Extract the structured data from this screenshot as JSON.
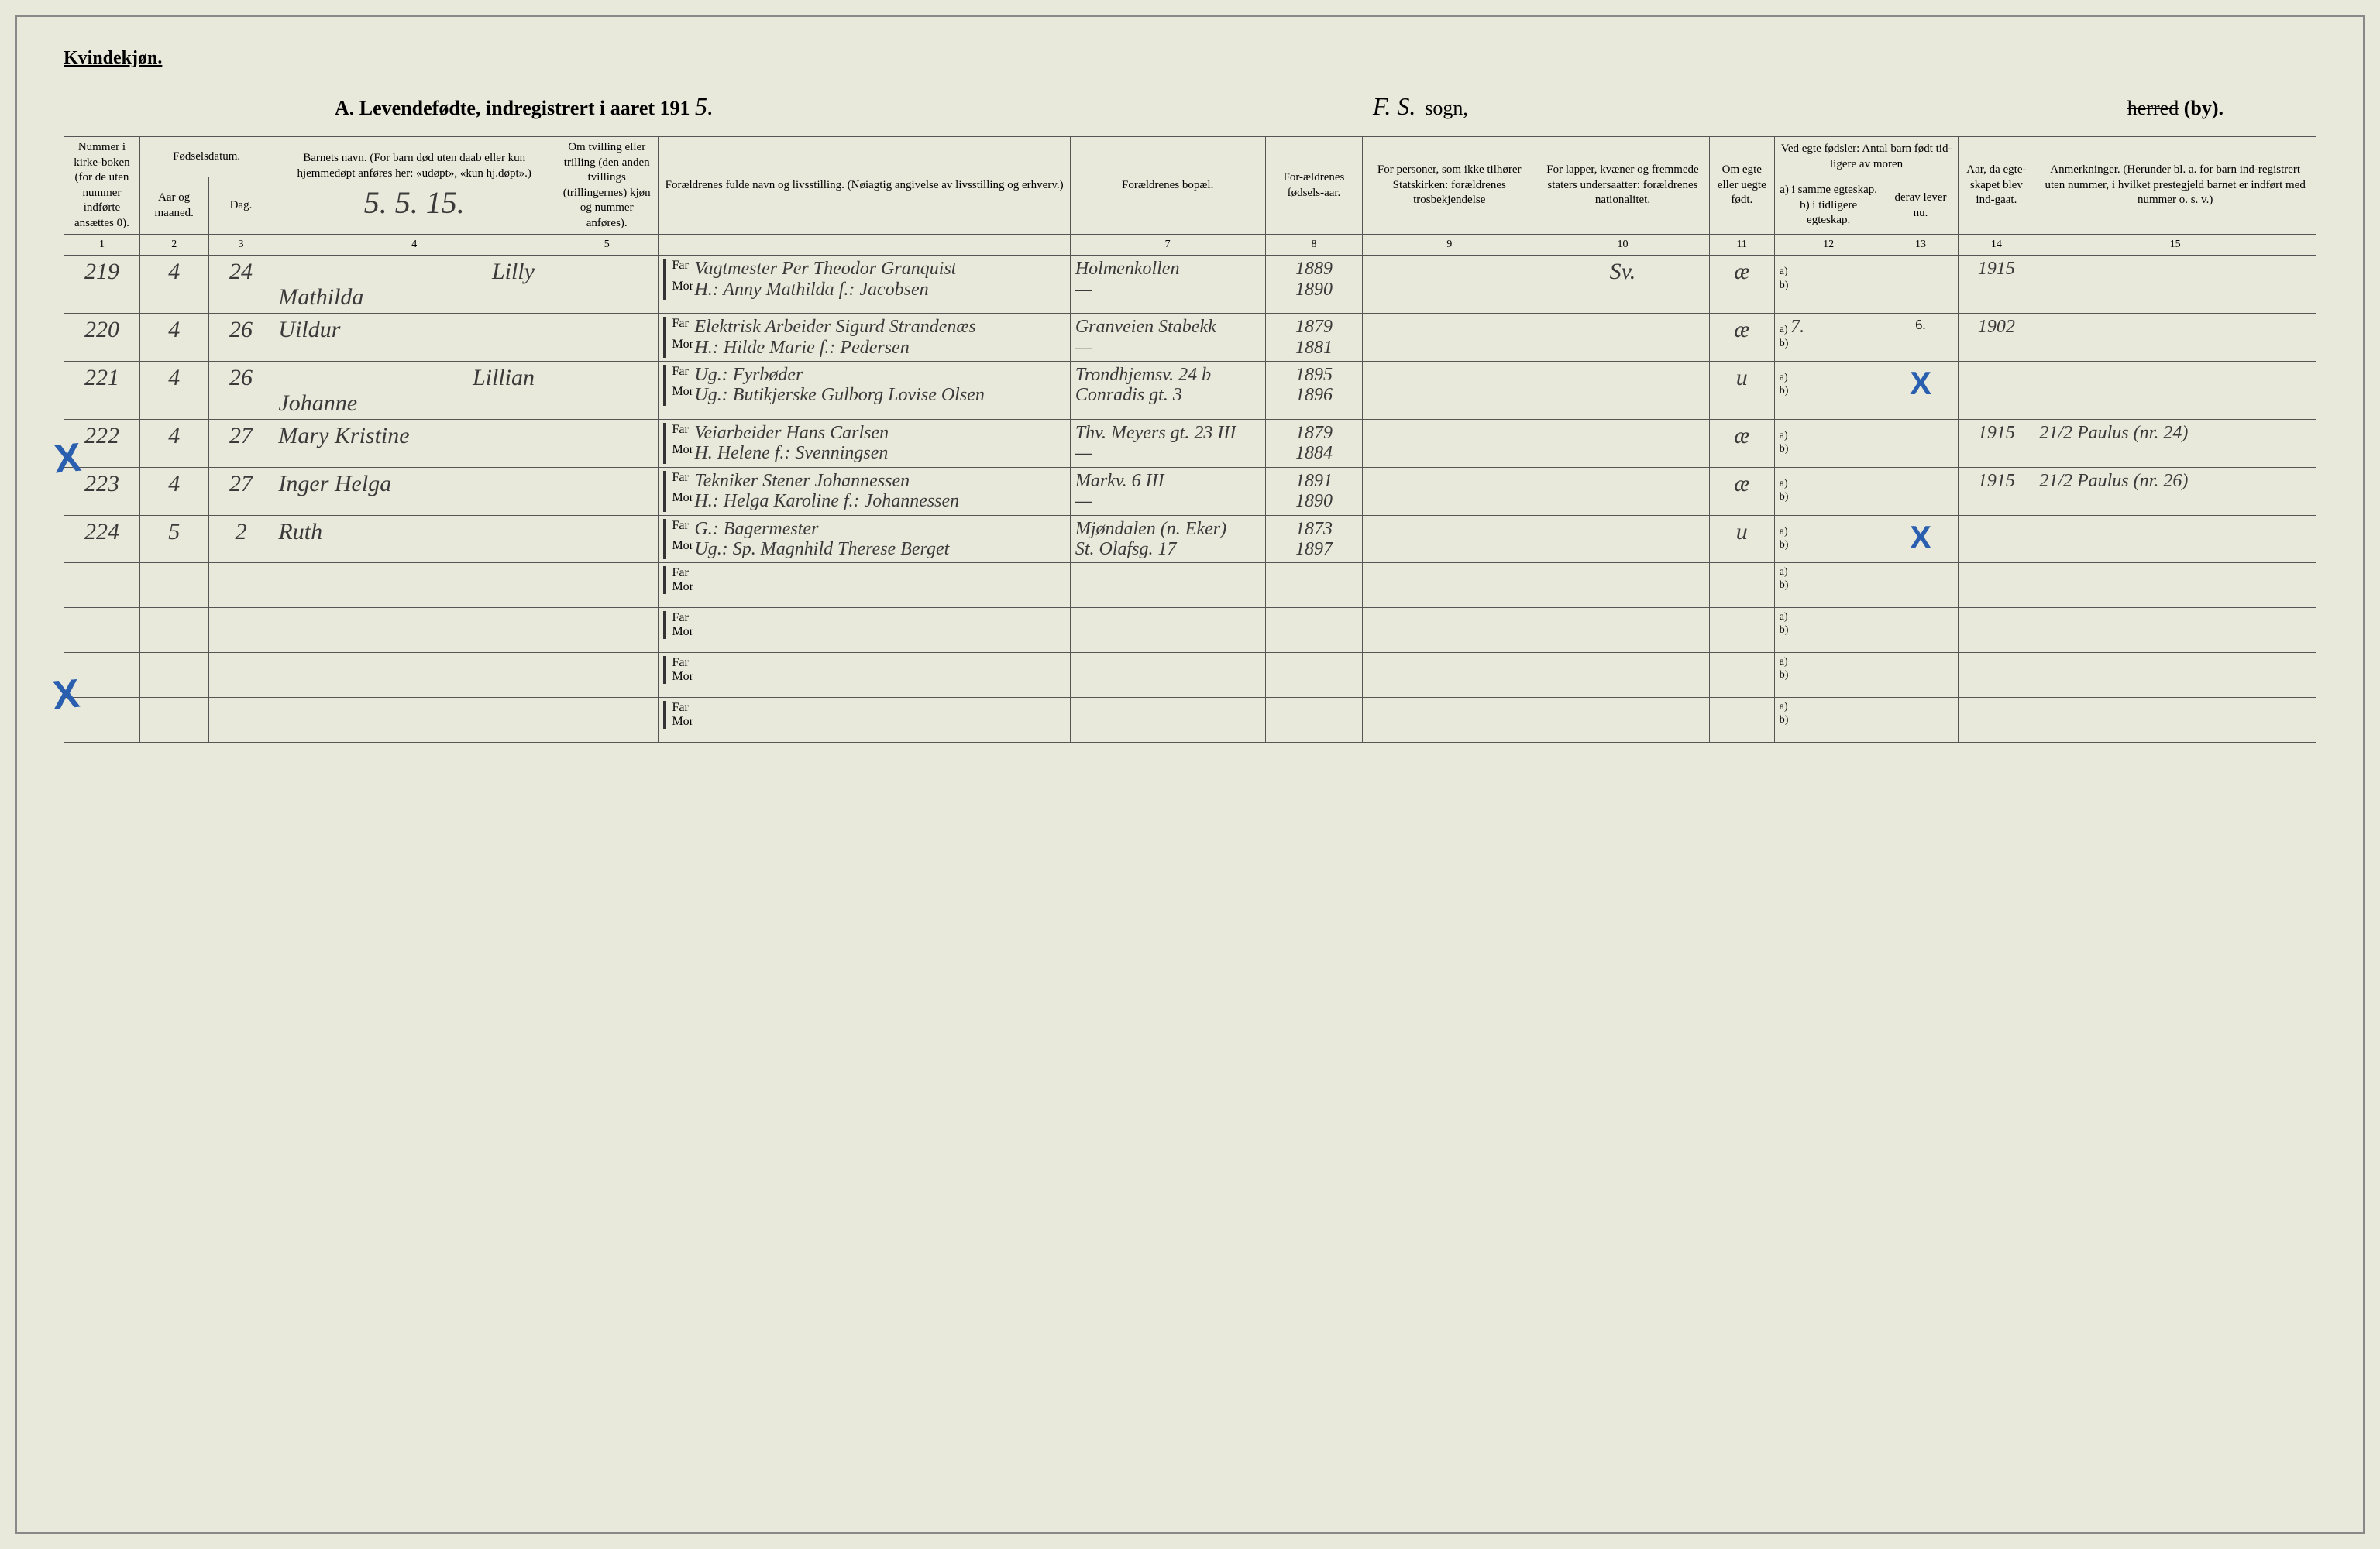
{
  "header": {
    "kvindekjon": "Kvindekjøn.",
    "title_prefix": "A.  Levendefødte, indregistrert i aaret 191",
    "year_suffix": "5.",
    "sogn_hand": "F. S.",
    "sogn_label": "sogn,",
    "herred_struck": "herred",
    "by_label": "(by)."
  },
  "columns": {
    "c1": "Nummer i kirke-boken (for de uten nummer indførte ansættes 0).",
    "c2_group": "Fødselsdatum.",
    "c2": "Aar og maaned.",
    "c3": "Dag.",
    "c4": "Barnets navn.\n(For barn død uten daab eller kun hjemmedøpt anføres her: «udøpt», «kun hj.døpt».)",
    "c5": "Om tvilling eller trilling (den anden tvillings (trillingernes) kjøn og nummer anføres).",
    "c6": "Forældrenes fulde navn og livsstilling.\n(Nøiagtig angivelse av livsstilling og erhverv.)",
    "c7": "Forældrenes bopæl.",
    "c8": "For-ældrenes fødsels-aar.",
    "c9": "For personer, som ikke tilhører Statskirken: forældrenes trosbekjendelse",
    "c10": "For lapper, kvæner og fremmede staters undersaatter: forældrenes nationalitet.",
    "c11": "Om egte eller uegte født.",
    "c12_group": "Ved egte fødsler:\nAntal barn født tid-ligere av moren",
    "c12a": "a) i samme egteskap.",
    "c12b": "b) i tidligere egteskap.",
    "c13": "derav lever nu.",
    "c14": "Aar, da egte-skapet blev ind-gaat.",
    "c15": "Anmerkninger.\n(Herunder bl. a. for barn ind-registrert uten nummer, i hvilket prestegjeld barnet er indført med nummer o. s. v.)"
  },
  "colnums": [
    "1",
    "2",
    "3",
    "4",
    "5",
    "",
    "7",
    "8",
    "9",
    "10",
    "11",
    "12",
    "13",
    "14",
    "15"
  ],
  "barnets_date_hand": "5. 5. 15.",
  "labels": {
    "far": "Far",
    "mor": "Mor",
    "a": "a)",
    "b": "b)"
  },
  "rows": [
    {
      "num": "219",
      "aar": "4",
      "dag": "24",
      "navn_top": "Lilly",
      "navn": "Mathilda",
      "far": "Vagtmester Per Theodor Granquist",
      "mor": "H.: Anny Mathilda f.: Jacobsen",
      "bopael_far": "Holmenkollen",
      "bopael_mor": "—",
      "faar": "1889",
      "maar": "1890",
      "c10": "Sv.",
      "egte": "æ",
      "ab": "",
      "derav": "",
      "indgaat": "1915",
      "anm": ""
    },
    {
      "num": "220",
      "aar": "4",
      "dag": "26",
      "navn_top": "",
      "navn": "Uildur",
      "far": "Elektrisk Arbeider Sigurd Strandenæs",
      "mor": "H.: Hilde Marie f.: Pedersen",
      "bopael_far": "Granveien Stabekk",
      "bopael_mor": "—",
      "faar": "1879",
      "maar": "1881",
      "c10": "",
      "egte": "æ",
      "ab": "7.",
      "derav": "6.",
      "indgaat": "1902",
      "anm": ""
    },
    {
      "num": "221",
      "aar": "4",
      "dag": "26",
      "navn_top": "Lillian",
      "navn": "Johanne",
      "far": "Ug.: Fyrbøder",
      "mor": "Ug.: Butikjerske Gulborg Lovise Olsen",
      "bopael_far": "Trondhjemsv. 24 b",
      "bopael_mor": "Conradis gt. 3",
      "faar": "1895",
      "maar": "1896",
      "c10": "",
      "egte": "u",
      "ab": "",
      "derav": "X",
      "indgaat": "",
      "anm": "",
      "bluex": true
    },
    {
      "num": "222",
      "aar": "4",
      "dag": "27",
      "navn_top": "",
      "navn": "Mary Kristine",
      "far": "Veiarbeider Hans Carlsen",
      "mor": "H. Helene f.: Svenningsen",
      "bopael_far": "Thv. Meyers gt. 23 III",
      "bopael_mor": "—",
      "faar": "1879",
      "maar": "1884",
      "c10": "",
      "egte": "æ",
      "ab": "",
      "derav": "",
      "indgaat": "1915",
      "anm": "21/2 Paulus (nr. 24)"
    },
    {
      "num": "223",
      "aar": "4",
      "dag": "27",
      "navn_top": "",
      "navn": "Inger Helga",
      "far": "Tekniker Stener Johannessen",
      "mor": "H.: Helga Karoline f.: Johannessen",
      "bopael_far": "Markv. 6 III",
      "bopael_mor": "—",
      "faar": "1891",
      "maar": "1890",
      "c10": "",
      "egte": "æ",
      "ab": "",
      "derav": "",
      "indgaat": "1915",
      "anm": "21/2 Paulus (nr. 26)"
    },
    {
      "num": "224",
      "aar": "5",
      "dag": "2",
      "navn_top": "",
      "navn": "Ruth",
      "far": "G.: Bagermester",
      "mor": "Ug.: Sp. Magnhild Therese Berget",
      "bopael_far": "Mjøndalen (n. Eker)",
      "bopael_mor": "St. Olafsg. 17",
      "faar": "1873",
      "maar": "1897",
      "c10": "",
      "egte": "u",
      "ab": "",
      "derav": "X",
      "indgaat": "",
      "anm": "",
      "bluex": true
    }
  ],
  "blank_rows": 4
}
